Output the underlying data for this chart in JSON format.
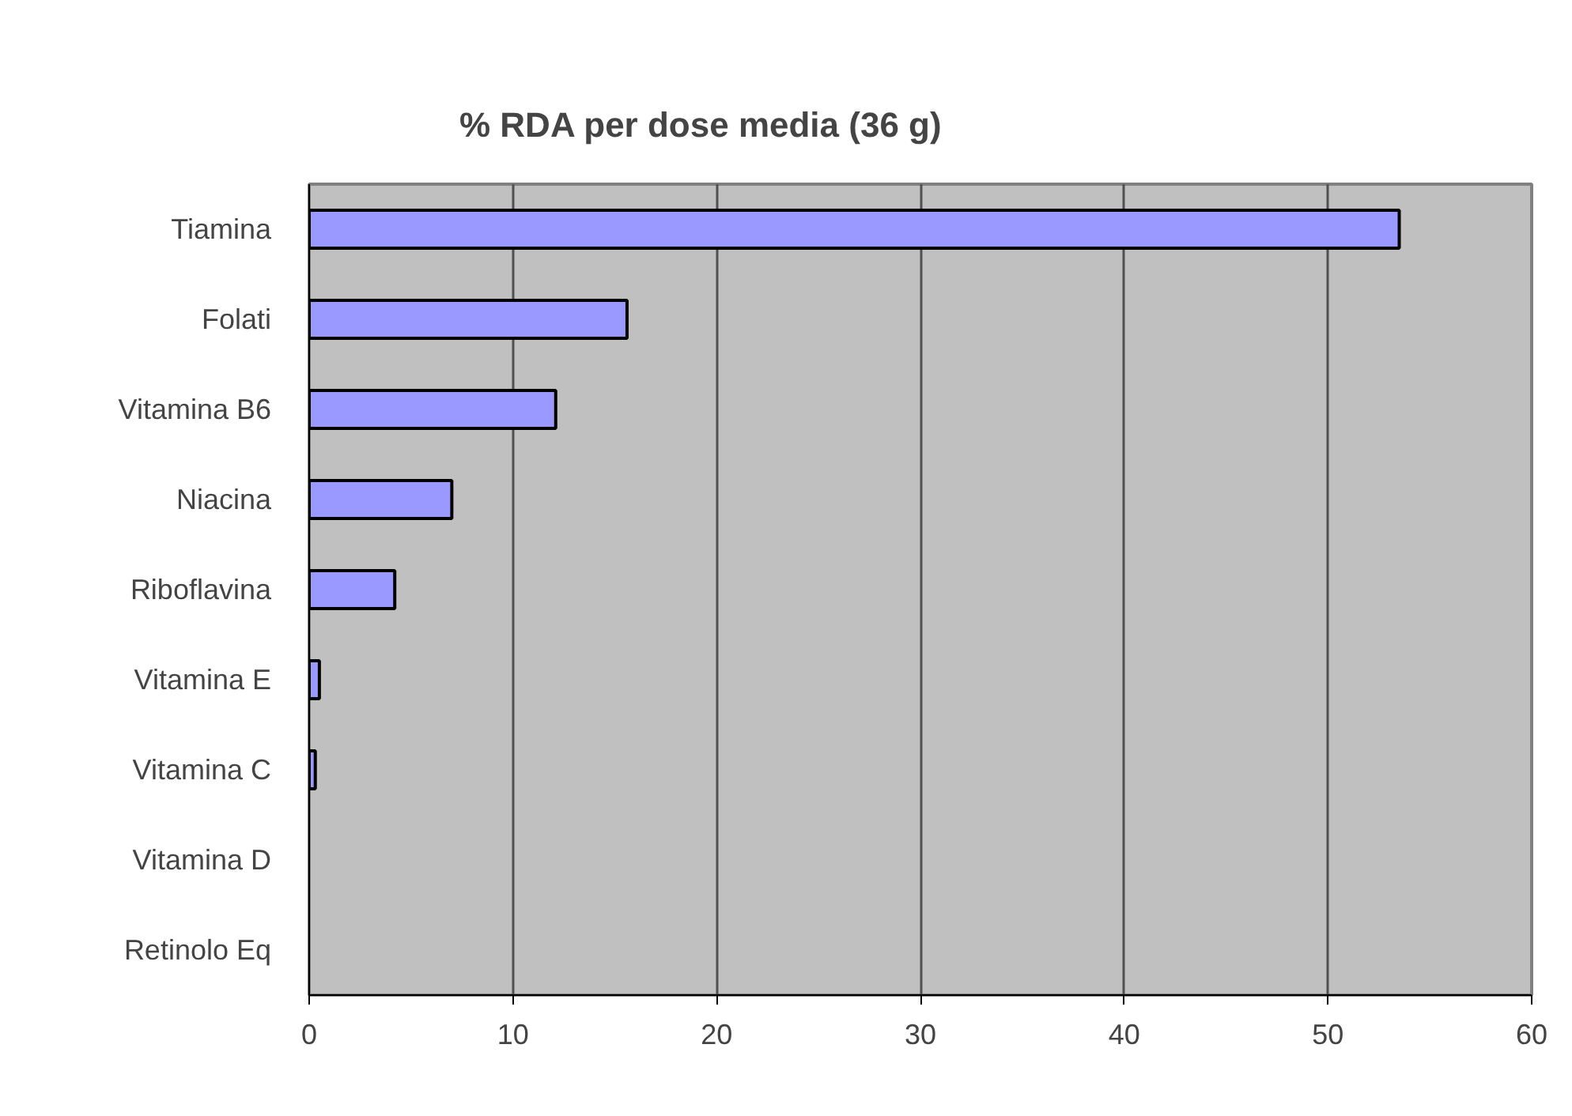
{
  "chart_data": {
    "type": "bar",
    "orientation": "horizontal",
    "title": "% RDA per dose media (36 g)",
    "categories": [
      "Tiamina",
      "Folati",
      "Vitamina B6",
      "Niacina",
      "Riboflavina",
      "Vitamina E",
      "Vitamina C",
      "Vitamina D",
      "Retinolo Eq"
    ],
    "values": [
      53.5,
      15.6,
      12.1,
      7.0,
      4.2,
      0.5,
      0.3,
      0,
      0
    ],
    "color": "#9999ff",
    "xlim": [
      0,
      60
    ],
    "xticks": [
      0,
      10,
      20,
      30,
      40,
      50,
      60
    ],
    "grid": "x"
  }
}
